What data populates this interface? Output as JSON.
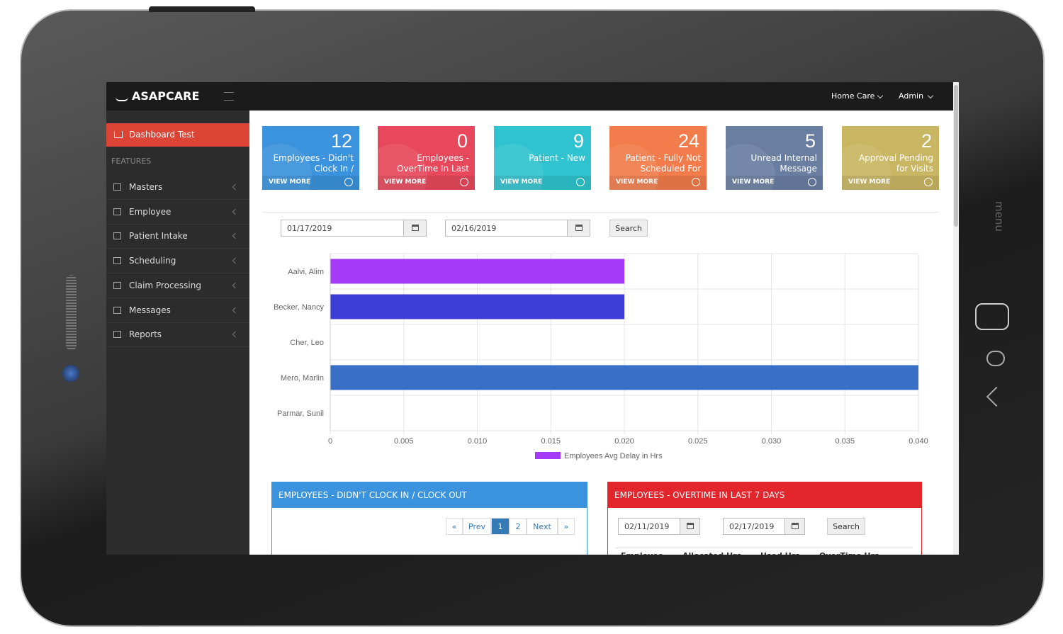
{
  "header": {
    "logo": "ASAPCARE",
    "menus": [
      "Home Care",
      "Admin"
    ]
  },
  "sidebar": {
    "active": "Dashboard Test",
    "section": "FEATURES",
    "items": [
      "Masters",
      "Employee",
      "Patient Intake",
      "Scheduling",
      "Claim Processing",
      "Messages",
      "Reports"
    ]
  },
  "tiles": [
    {
      "value": 12,
      "label": "Employees - Didn't Clock In /",
      "link": "VIEW MORE",
      "color": "#3a93dc"
    },
    {
      "value": 0,
      "label": "Employees - OverTime In Last",
      "link": "VIEW MORE",
      "color": "#e8485c"
    },
    {
      "value": 9,
      "label": "Patient - New",
      "link": "VIEW MORE",
      "color": "#2fc3cf"
    },
    {
      "value": 24,
      "label": "Patient - Fully Not Scheduled For",
      "link": "VIEW MORE",
      "color": "#f27c4b"
    },
    {
      "value": 5,
      "label": "Unread Internal Message",
      "link": "VIEW MORE",
      "color": "#6a7ea2"
    },
    {
      "value": 2,
      "label": "Approval Pending for Visits",
      "link": "VIEW MORE",
      "color": "#c9b662"
    }
  ],
  "filter": {
    "from": "01/17/2019",
    "to": "02/16/2019",
    "button": "Search"
  },
  "chart_data": {
    "type": "bar",
    "orientation": "horizontal",
    "categories": [
      "Aalvi, Alim",
      "Becker, Nancy",
      "Cher, Leo",
      "Mero, Marlin",
      "Parmar, Sunil"
    ],
    "series": [
      {
        "name": "Employees Avg Delay in Hrs",
        "color": "#a43cf7",
        "colors": [
          "#a43cf7",
          "#3d3dd8",
          "#3a6fc6",
          "#3a6fc6",
          "#3a6fc6"
        ],
        "values": [
          0.02,
          0.02,
          0,
          0.04,
          0
        ]
      }
    ],
    "xlim": [
      0,
      0.04
    ],
    "xticks": [
      0,
      0.005,
      {
        "value": 0.01,
        "label": "0.010"
      },
      0.015,
      {
        "value": 0.02,
        "label": "0.020"
      },
      0.025,
      {
        "value": 0.03,
        "label": "0.030"
      },
      0.035,
      {
        "value": 0.04,
        "label": "0.040"
      }
    ],
    "grid": true,
    "legend": "bottom"
  },
  "panels": [
    {
      "title": "EMPLOYEES - DIDN'T CLOCK IN / CLOCK OUT",
      "color": "#3a93dc",
      "pagination": [
        "«",
        "Prev",
        "1",
        "2",
        "Next",
        "»"
      ]
    },
    {
      "title": "EMPLOYEES - OVERTIME IN LAST 7 DAYS",
      "color": "#e2262b",
      "from": "02/11/2019",
      "to": "02/17/2019",
      "button": "Search",
      "columns": [
        "Employee",
        "Allocated Hrs",
        "Used Hrs",
        "OverTime Hrs"
      ]
    }
  ],
  "device": {
    "label": "menu"
  }
}
